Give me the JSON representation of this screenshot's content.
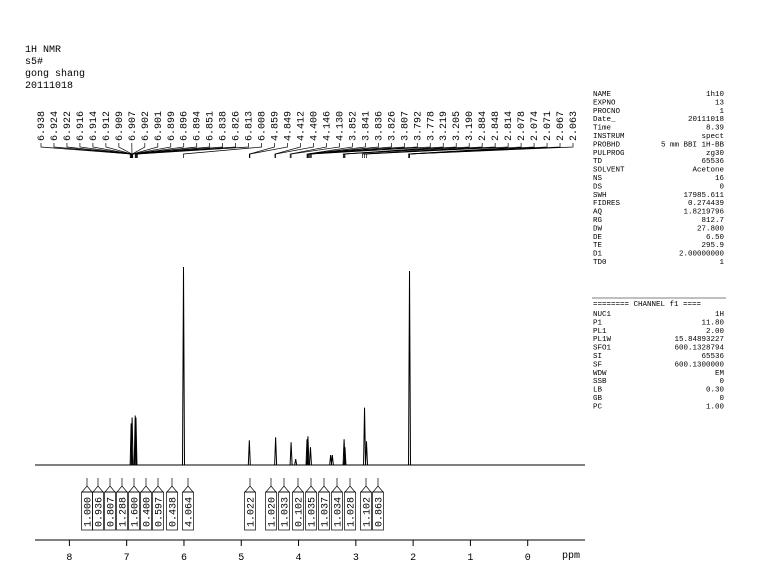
{
  "header": [
    "1H NMR",
    "s5#",
    "gong shang",
    "20111018"
  ],
  "chart_data": {
    "type": "nmr",
    "x_label": "ppm",
    "xlim": [
      8.6,
      -1.0
    ],
    "xticks": [
      8,
      7,
      6,
      5,
      4,
      3,
      2,
      1,
      0
    ],
    "ylim": [
      0,
      100
    ],
    "color": "#000000",
    "peaks": {
      "x": [
        6.922,
        6.905,
        6.851,
        6.838,
        6.008,
        4.859,
        4.4,
        4.13,
        4.05,
        3.852,
        3.836,
        3.792,
        3.44,
        3.41,
        3.205,
        3.19,
        2.848,
        2.814,
        2.063
      ],
      "values": [
        21,
        24,
        25,
        24,
        100,
        12.5,
        14,
        11.5,
        3,
        13,
        14.5,
        9,
        5,
        5,
        13,
        9,
        29,
        12,
        98
      ]
    },
    "peak_labels": [
      6.938,
      6.924,
      6.922,
      6.916,
      6.914,
      6.912,
      6.909,
      6.907,
      6.902,
      6.901,
      6.899,
      6.896,
      6.894,
      6.851,
      6.838,
      6.826,
      6.813,
      6.008,
      4.859,
      4.849,
      4.412,
      {
        "value": 4.4,
        "label": "4.400"
      },
      4.146,
      {
        "value": 4.13,
        "label": "4.130"
      },
      3.852,
      3.841,
      3.836,
      3.826,
      3.807,
      3.792,
      3.778,
      3.219,
      3.205,
      {
        "value": 3.19,
        "label": "3.190"
      },
      2.884,
      2.848,
      2.814,
      2.078,
      2.074,
      2.071,
      2.067,
      2.063
    ],
    "integrals": [
      {
        "value": 1,
        "label": "1.000"
      },
      0.936,
      0.807,
      1.288,
      {
        "value": 1.6,
        "label": "1.600"
      },
      {
        "value": 0.4,
        "label": "0.400"
      },
      0.597,
      0.438,
      4.064,
      1.022,
      {
        "value": 1.02,
        "label": "1.020"
      },
      1.033,
      0.102,
      1.035,
      1.037,
      1.034,
      1.028,
      1.102,
      0.863
    ]
  },
  "parameters": [
    [
      "NAME",
      "1h10"
    ],
    [
      "EXPNO",
      "13"
    ],
    [
      "PROCNO",
      "1"
    ],
    [
      "Date_",
      "20111018"
    ],
    [
      "Time",
      "8.39"
    ],
    [
      "INSTRUM",
      "spect"
    ],
    [
      "PROBHD",
      "5 mm BBI 1H-BB"
    ],
    [
      "PULPROG",
      "zg30"
    ],
    [
      "TD",
      "65536"
    ],
    [
      "SOLVENT",
      "Acetone"
    ],
    [
      "NS",
      "16"
    ],
    [
      "DS",
      "0"
    ],
    [
      "SWH",
      "17985.611"
    ],
    [
      "FIDRES",
      "0.274439"
    ],
    [
      "AQ",
      "1.8219796"
    ],
    [
      "RG",
      "812.7"
    ],
    [
      "DW",
      "27.800"
    ],
    [
      "DE",
      "6.50"
    ],
    [
      "TE",
      "295.9"
    ],
    [
      "D1",
      "2.00000000"
    ],
    [
      "TD0",
      "1"
    ]
  ],
  "channel_header": "======== CHANNEL f1 ====",
  "channel_parameters": [
    [
      "NUC1",
      "1H"
    ],
    [
      "P1",
      "11.80"
    ],
    [
      "PL1",
      "2.00"
    ],
    [
      "PL1W",
      "15.84893227"
    ],
    [
      "SFO1",
      "600.1328794"
    ],
    [
      "SI",
      "65536"
    ],
    [
      "SF",
      "600.1300000"
    ],
    [
      "WDW",
      "EM"
    ],
    [
      "SSB",
      "0"
    ],
    [
      "LB",
      "0.30"
    ],
    [
      "GB",
      "0"
    ],
    [
      "PC",
      "1.00"
    ]
  ]
}
